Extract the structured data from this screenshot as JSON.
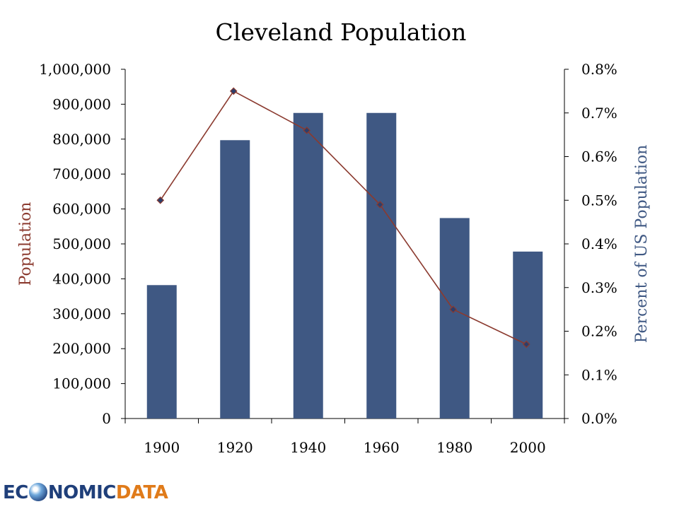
{
  "chart_data": {
    "type": "bar+line",
    "title": "Cleveland Population",
    "categories": [
      "1900",
      "1920",
      "1940",
      "1960",
      "1980",
      "2000"
    ],
    "series": [
      {
        "values": [
          382000,
          797000,
          875000,
          875000,
          574000,
          478000
        ],
        "axis": "left",
        "kind": "bar",
        "color": "#3f5883"
      },
      {
        "values": [
          0.5,
          0.75,
          0.66,
          0.49,
          0.25,
          0.17
        ],
        "axis": "right",
        "kind": "line",
        "color": "#8b3a2f"
      }
    ],
    "ylabel": "Population",
    "ylabel_color": "#8b3a2f",
    "ylim": [
      0,
      1000000
    ],
    "y_ticks": [
      "0",
      "100,000",
      "200,000",
      "300,000",
      "400,000",
      "500,000",
      "600,000",
      "700,000",
      "800,000",
      "900,000",
      "1,000,000"
    ],
    "y2label": "Percent of US Population",
    "y2label_color": "#3f5883",
    "y2lim": [
      0,
      0.8
    ],
    "y2_ticks": [
      "0.0%",
      "0.1%",
      "0.2%",
      "0.3%",
      "0.4%",
      "0.5%",
      "0.6%",
      "0.7%",
      "0.8%"
    ],
    "grid": false,
    "legend": "none"
  },
  "logo": {
    "part1": "EC",
    "part2": "NOMIC",
    "part3": "DATA"
  }
}
